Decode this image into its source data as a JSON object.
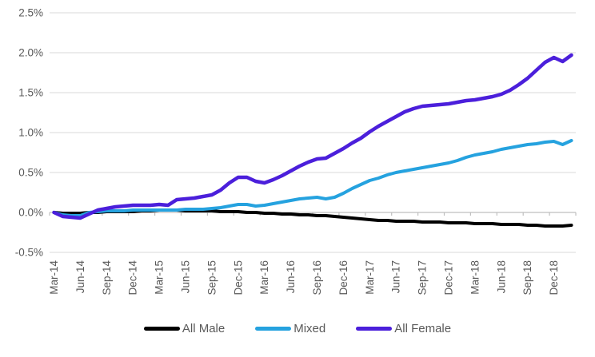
{
  "chart_data": {
    "type": "line",
    "title": "",
    "xlabel": "",
    "ylabel": "",
    "ylim": [
      -0.5,
      2.5
    ],
    "grid": "horizontal",
    "legend_position": "bottom",
    "background_color": "#ffffff",
    "gridline_color": "#d9d9d9",
    "axis_line_color": "#bfbfbf",
    "tick_color": "#bfbfbf",
    "axis_text_color": "#595959",
    "y_ticks": [
      {
        "value": 2.5,
        "label": "2.5%"
      },
      {
        "value": 2.0,
        "label": "2.0%"
      },
      {
        "value": 1.5,
        "label": "1.5%"
      },
      {
        "value": 1.0,
        "label": "1.0%"
      },
      {
        "value": 0.5,
        "label": "0.5%"
      },
      {
        "value": 0.0,
        "label": "0.0%"
      },
      {
        "value": -0.5,
        "label": "-0.5%"
      }
    ],
    "x": [
      "Mar-14",
      "Apr-14",
      "May-14",
      "Jun-14",
      "Jul-14",
      "Aug-14",
      "Sep-14",
      "Oct-14",
      "Nov-14",
      "Dec-14",
      "Jan-15",
      "Feb-15",
      "Mar-15",
      "Apr-15",
      "May-15",
      "Jun-15",
      "Jul-15",
      "Aug-15",
      "Sep-15",
      "Oct-15",
      "Nov-15",
      "Dec-15",
      "Jan-16",
      "Feb-16",
      "Mar-16",
      "Apr-16",
      "May-16",
      "Jun-16",
      "Jul-16",
      "Aug-16",
      "Sep-16",
      "Oct-16",
      "Nov-16",
      "Dec-16",
      "Jan-17",
      "Feb-17",
      "Mar-17",
      "Apr-17",
      "May-17",
      "Jun-17",
      "Jul-17",
      "Aug-17",
      "Sep-17",
      "Oct-17",
      "Nov-17",
      "Dec-17",
      "Jan-18",
      "Feb-18",
      "Mar-18",
      "Apr-18",
      "May-18",
      "Jun-18",
      "Jul-18",
      "Aug-18",
      "Sep-18",
      "Oct-18",
      "Nov-18",
      "Dec-18",
      "Jan-19",
      "Feb-19"
    ],
    "x_tick_labels": [
      "Mar-14",
      "Jun-14",
      "Sep-14",
      "Dec-14",
      "Mar-15",
      "Jun-15",
      "Sep-15",
      "Dec-15",
      "Mar-16",
      "Jun-16",
      "Sep-16",
      "Dec-16",
      "Mar-17",
      "Jun-17",
      "Sep-17",
      "Dec-17",
      "Mar-18",
      "Jun-18",
      "Sep-18",
      "Dec-18"
    ],
    "x_tick_every": 3,
    "unit": "percent",
    "series": [
      {
        "name": "All Male",
        "color": "#000000",
        "stroke_width": 4,
        "values": [
          0.0,
          -0.01,
          -0.01,
          -0.01,
          0.0,
          0.0,
          0.01,
          0.01,
          0.01,
          0.01,
          0.02,
          0.02,
          0.03,
          0.03,
          0.03,
          0.02,
          0.02,
          0.02,
          0.02,
          0.01,
          0.01,
          0.01,
          0.0,
          0.0,
          -0.01,
          -0.01,
          -0.02,
          -0.02,
          -0.03,
          -0.03,
          -0.04,
          -0.04,
          -0.05,
          -0.06,
          -0.07,
          -0.08,
          -0.09,
          -0.1,
          -0.1,
          -0.11,
          -0.11,
          -0.11,
          -0.12,
          -0.12,
          -0.12,
          -0.13,
          -0.13,
          -0.13,
          -0.14,
          -0.14,
          -0.14,
          -0.15,
          -0.15,
          -0.15,
          -0.16,
          -0.16,
          -0.17,
          -0.17,
          -0.17,
          -0.16
        ]
      },
      {
        "name": "Mixed",
        "color": "#25a2df",
        "stroke_width": 4,
        "values": [
          0.0,
          -0.03,
          -0.04,
          -0.04,
          0.0,
          0.01,
          0.02,
          0.02,
          0.02,
          0.03,
          0.03,
          0.03,
          0.03,
          0.03,
          0.03,
          0.04,
          0.04,
          0.04,
          0.05,
          0.06,
          0.08,
          0.1,
          0.1,
          0.08,
          0.09,
          0.11,
          0.13,
          0.15,
          0.17,
          0.18,
          0.19,
          0.17,
          0.19,
          0.24,
          0.3,
          0.35,
          0.4,
          0.43,
          0.47,
          0.5,
          0.52,
          0.54,
          0.56,
          0.58,
          0.6,
          0.62,
          0.65,
          0.69,
          0.72,
          0.74,
          0.76,
          0.79,
          0.81,
          0.83,
          0.85,
          0.86,
          0.88,
          0.89,
          0.85,
          0.9
        ]
      },
      {
        "name": "All Female",
        "color": "#4b1fdb",
        "stroke_width": 4.5,
        "values": [
          0.0,
          -0.05,
          -0.06,
          -0.07,
          -0.02,
          0.03,
          0.05,
          0.07,
          0.08,
          0.09,
          0.09,
          0.09,
          0.1,
          0.09,
          0.16,
          0.17,
          0.18,
          0.2,
          0.22,
          0.28,
          0.37,
          0.44,
          0.44,
          0.39,
          0.37,
          0.41,
          0.46,
          0.52,
          0.58,
          0.63,
          0.67,
          0.68,
          0.74,
          0.8,
          0.87,
          0.93,
          1.01,
          1.08,
          1.14,
          1.2,
          1.26,
          1.3,
          1.33,
          1.34,
          1.35,
          1.36,
          1.38,
          1.4,
          1.41,
          1.43,
          1.45,
          1.48,
          1.53,
          1.6,
          1.68,
          1.78,
          1.88,
          1.94,
          1.89,
          1.97
        ]
      }
    ],
    "legend": [
      {
        "label": "All Male",
        "color": "#000000"
      },
      {
        "label": "Mixed",
        "color": "#25a2df"
      },
      {
        "label": "All Female",
        "color": "#4b1fdb"
      }
    ]
  }
}
